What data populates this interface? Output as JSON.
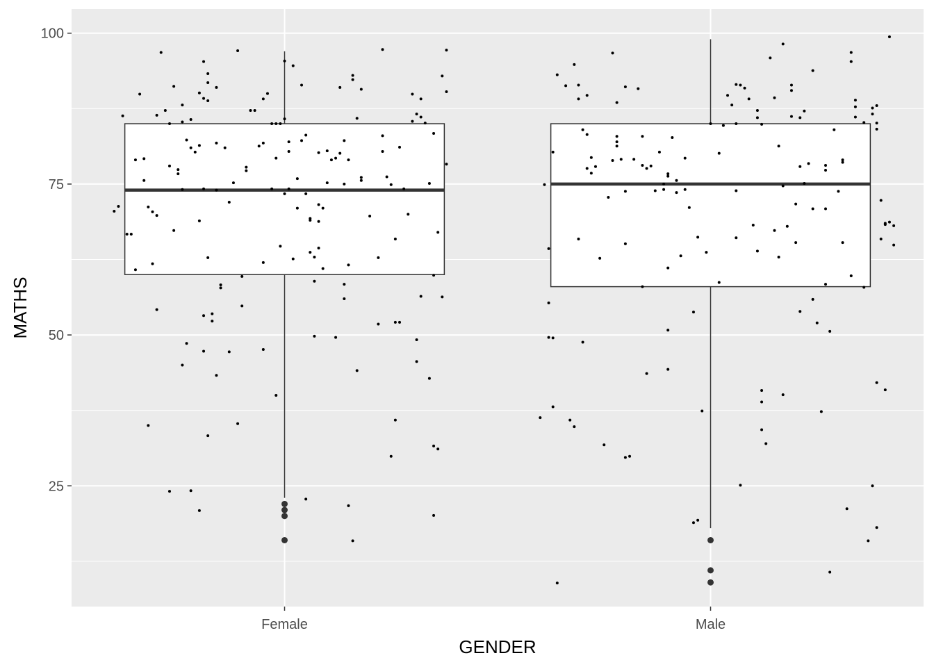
{
  "chart_data": {
    "type": "boxplot",
    "xlabel": "GENDER",
    "ylabel": "MATHS",
    "ylim": [
      5,
      104
    ],
    "yticks": [
      25,
      50,
      75,
      100
    ],
    "grid": true,
    "legend": "none",
    "categories": [
      "Female",
      "Male"
    ],
    "boxes": [
      {
        "category": "Female",
        "lower_whisker": 23,
        "q1": 60,
        "median": 74,
        "q3": 85,
        "upper_whisker": 97,
        "outliers": [
          22,
          21,
          20,
          16
        ]
      },
      {
        "category": "Male",
        "lower_whisker": 18,
        "q1": 58,
        "median": 75,
        "q3": 85,
        "upper_whisker": 99,
        "outliers": [
          16,
          11,
          9
        ]
      }
    ],
    "jitter_points": {
      "Female": [
        [
          -0.4,
          70.5
        ],
        [
          -0.39,
          71.3
        ],
        [
          -0.38,
          86.3
        ],
        [
          -0.37,
          66.7
        ],
        [
          -0.36,
          66.7
        ],
        [
          -0.35,
          60.8
        ],
        [
          -0.35,
          79.0
        ],
        [
          -0.34,
          89.9
        ],
        [
          -0.33,
          79.2
        ],
        [
          -0.33,
          75.6
        ],
        [
          -0.32,
          71.2
        ],
        [
          -0.32,
          35.0
        ],
        [
          -0.31,
          70.4
        ],
        [
          -0.31,
          61.8
        ],
        [
          -0.3,
          54.2
        ],
        [
          -0.3,
          86.4
        ],
        [
          -0.3,
          69.8
        ],
        [
          -0.29,
          96.8
        ],
        [
          -0.28,
          87.2
        ],
        [
          -0.27,
          78.0
        ],
        [
          -0.27,
          85.0
        ],
        [
          -0.27,
          24.1
        ],
        [
          -0.26,
          91.2
        ],
        [
          -0.26,
          67.3
        ],
        [
          -0.25,
          77.4
        ],
        [
          -0.25,
          76.7
        ],
        [
          -0.24,
          74.1
        ],
        [
          -0.24,
          45.0
        ],
        [
          -0.24,
          88.1
        ],
        [
          -0.24,
          85.3
        ],
        [
          -0.23,
          82.3
        ],
        [
          -0.23,
          48.6
        ],
        [
          -0.22,
          81.0
        ],
        [
          -0.22,
          85.7
        ],
        [
          -0.22,
          24.2
        ],
        [
          -0.21,
          80.3
        ],
        [
          -0.2,
          90.1
        ],
        [
          -0.2,
          68.9
        ],
        [
          -0.2,
          81.4
        ],
        [
          -0.2,
          20.9
        ],
        [
          -0.19,
          89.2
        ],
        [
          -0.19,
          74.2
        ],
        [
          -0.19,
          47.3
        ],
        [
          -0.19,
          53.2
        ],
        [
          -0.19,
          95.3
        ],
        [
          -0.18,
          88.8
        ],
        [
          -0.18,
          91.8
        ],
        [
          -0.18,
          93.3
        ],
        [
          -0.18,
          33.3
        ],
        [
          -0.18,
          62.8
        ],
        [
          -0.17,
          53.5
        ],
        [
          -0.17,
          52.3
        ],
        [
          -0.16,
          81.8
        ],
        [
          -0.16,
          91.0
        ],
        [
          -0.16,
          43.3
        ],
        [
          -0.16,
          74.0
        ],
        [
          -0.16,
          74.0
        ],
        [
          -0.15,
          57.8
        ],
        [
          -0.15,
          58.3
        ],
        [
          -0.14,
          81.0
        ],
        [
          -0.13,
          72.0
        ],
        [
          -0.13,
          47.2
        ],
        [
          -0.12,
          75.2
        ],
        [
          -0.11,
          97.1
        ],
        [
          -0.11,
          35.3
        ],
        [
          -0.1,
          59.7
        ],
        [
          -0.1,
          54.8
        ],
        [
          -0.09,
          77.2
        ],
        [
          -0.09,
          77.8
        ],
        [
          -0.08,
          87.2
        ],
        [
          -0.07,
          87.2
        ],
        [
          -0.06,
          81.3
        ],
        [
          -0.05,
          47.6
        ],
        [
          -0.05,
          89.1
        ],
        [
          -0.05,
          81.8
        ],
        [
          -0.05,
          62.0
        ],
        [
          -0.04,
          90.0
        ],
        [
          -0.03,
          85.0
        ],
        [
          -0.03,
          74.2
        ],
        [
          -0.02,
          85.0
        ],
        [
          -0.02,
          79.3
        ],
        [
          -0.02,
          40.0
        ],
        [
          -0.01,
          64.7
        ],
        [
          -0.01,
          85.0
        ],
        [
          0.0,
          85.8
        ],
        [
          0.0,
          73.4
        ],
        [
          0.0,
          95.4
        ],
        [
          0.01,
          82.0
        ],
        [
          0.01,
          80.4
        ],
        [
          0.01,
          74.2
        ],
        [
          0.02,
          62.6
        ],
        [
          0.02,
          94.6
        ],
        [
          0.03,
          71.0
        ],
        [
          0.03,
          75.9
        ],
        [
          0.04,
          91.4
        ],
        [
          0.04,
          82.2
        ],
        [
          0.05,
          73.4
        ],
        [
          0.05,
          83.1
        ],
        [
          0.05,
          22.8
        ],
        [
          0.06,
          63.7
        ],
        [
          0.06,
          69.0
        ],
        [
          0.06,
          69.3
        ],
        [
          0.07,
          49.8
        ],
        [
          0.07,
          62.9
        ],
        [
          0.07,
          58.9
        ],
        [
          0.08,
          64.4
        ],
        [
          0.08,
          71.6
        ],
        [
          0.08,
          80.2
        ],
        [
          0.08,
          68.8
        ],
        [
          0.09,
          61.0
        ],
        [
          0.09,
          71.0
        ],
        [
          0.1,
          80.5
        ],
        [
          0.1,
          75.2
        ],
        [
          0.11,
          79.0
        ],
        [
          0.12,
          49.6
        ],
        [
          0.12,
          79.3
        ],
        [
          0.13,
          91.0
        ],
        [
          0.13,
          80.1
        ],
        [
          0.14,
          82.2
        ],
        [
          0.14,
          75.0
        ],
        [
          0.14,
          58.4
        ],
        [
          0.15,
          61.6
        ],
        [
          0.14,
          56.0
        ],
        [
          0.15,
          21.7
        ],
        [
          0.15,
          79.0
        ],
        [
          0.16,
          93.0
        ],
        [
          0.16,
          92.3
        ],
        [
          0.16,
          15.9
        ],
        [
          0.17,
          44.1
        ],
        [
          0.17,
          85.9
        ],
        [
          0.18,
          90.7
        ],
        [
          0.18,
          75.6
        ],
        [
          0.18,
          76.1
        ],
        [
          0.2,
          69.7
        ],
        [
          0.22,
          51.8
        ],
        [
          0.22,
          62.8
        ],
        [
          0.23,
          80.4
        ],
        [
          0.23,
          83.0
        ],
        [
          0.23,
          97.3
        ],
        [
          0.24,
          76.2
        ],
        [
          0.25,
          74.9
        ],
        [
          0.25,
          29.9
        ],
        [
          0.26,
          52.1
        ],
        [
          0.26,
          65.9
        ],
        [
          0.26,
          35.9
        ],
        [
          0.27,
          81.1
        ],
        [
          0.27,
          52.1
        ],
        [
          0.28,
          74.2
        ],
        [
          0.29,
          70.0
        ],
        [
          0.3,
          85.4
        ],
        [
          0.3,
          89.9
        ],
        [
          0.31,
          86.6
        ],
        [
          0.31,
          49.2
        ],
        [
          0.31,
          45.6
        ],
        [
          0.32,
          56.4
        ],
        [
          0.32,
          89.1
        ],
        [
          0.32,
          86.1
        ],
        [
          0.33,
          85.1
        ],
        [
          0.34,
          42.8
        ],
        [
          0.34,
          75.1
        ],
        [
          0.35,
          31.6
        ],
        [
          0.35,
          59.9
        ],
        [
          0.35,
          83.4
        ],
        [
          0.35,
          20.1
        ],
        [
          0.36,
          67.0
        ],
        [
          0.36,
          31.1
        ],
        [
          0.37,
          56.3
        ],
        [
          0.37,
          92.9
        ],
        [
          0.38,
          90.3
        ],
        [
          0.38,
          78.3
        ],
        [
          0.38,
          97.2
        ]
      ],
      "Male": [
        [
          -0.4,
          36.3
        ],
        [
          -0.39,
          74.9
        ],
        [
          -0.38,
          55.3
        ],
        [
          -0.38,
          49.6
        ],
        [
          -0.38,
          64.3
        ],
        [
          -0.37,
          49.5
        ],
        [
          -0.37,
          38.1
        ],
        [
          -0.37,
          80.3
        ],
        [
          -0.36,
          93.1
        ],
        [
          -0.36,
          8.9
        ],
        [
          -0.34,
          91.3
        ],
        [
          -0.33,
          35.9
        ],
        [
          -0.32,
          94.8
        ],
        [
          -0.32,
          34.8
        ],
        [
          -0.31,
          89.1
        ],
        [
          -0.31,
          91.4
        ],
        [
          -0.31,
          65.9
        ],
        [
          -0.3,
          84.0
        ],
        [
          -0.3,
          48.8
        ],
        [
          -0.29,
          89.7
        ],
        [
          -0.29,
          77.6
        ],
        [
          -0.29,
          83.2
        ],
        [
          -0.28,
          79.4
        ],
        [
          -0.28,
          76.8
        ],
        [
          -0.27,
          77.9
        ],
        [
          -0.26,
          62.7
        ],
        [
          -0.25,
          31.8
        ],
        [
          -0.24,
          72.8
        ],
        [
          -0.23,
          78.9
        ],
        [
          -0.23,
          96.7
        ],
        [
          -0.22,
          82.9
        ],
        [
          -0.22,
          82.0
        ],
        [
          -0.22,
          81.3
        ],
        [
          -0.22,
          88.5
        ],
        [
          -0.21,
          79.1
        ],
        [
          -0.2,
          91.1
        ],
        [
          -0.2,
          65.1
        ],
        [
          -0.2,
          29.7
        ],
        [
          -0.2,
          73.8
        ],
        [
          -0.19,
          29.9
        ],
        [
          -0.18,
          79.1
        ],
        [
          -0.17,
          90.8
        ],
        [
          -0.16,
          78.1
        ],
        [
          -0.16,
          58.0
        ],
        [
          -0.16,
          82.9
        ],
        [
          -0.15,
          77.6
        ],
        [
          -0.15,
          43.6
        ],
        [
          -0.14,
          78.0
        ],
        [
          -0.13,
          73.9
        ],
        [
          -0.12,
          80.3
        ],
        [
          -0.11,
          75.0
        ],
        [
          -0.11,
          74.1
        ],
        [
          -0.1,
          50.8
        ],
        [
          -0.1,
          61.1
        ],
        [
          -0.1,
          44.3
        ],
        [
          -0.1,
          76.3
        ],
        [
          -0.1,
          76.7
        ],
        [
          -0.09,
          82.7
        ],
        [
          -0.08,
          75.6
        ],
        [
          -0.08,
          73.6
        ],
        [
          -0.07,
          63.1
        ],
        [
          -0.06,
          74.1
        ],
        [
          -0.06,
          79.3
        ],
        [
          -0.05,
          71.1
        ],
        [
          -0.04,
          53.8
        ],
        [
          -0.04,
          18.9
        ],
        [
          -0.03,
          66.2
        ],
        [
          -0.03,
          19.3
        ],
        [
          -0.02,
          37.4
        ],
        [
          -0.01,
          63.7
        ],
        [
          0.0,
          85.0
        ],
        [
          0.02,
          80.1
        ],
        [
          0.02,
          58.7
        ],
        [
          0.03,
          84.7
        ],
        [
          0.04,
          89.7
        ],
        [
          0.05,
          88.1
        ],
        [
          0.06,
          85.0
        ],
        [
          0.06,
          66.1
        ],
        [
          0.06,
          91.5
        ],
        [
          0.06,
          73.9
        ],
        [
          0.07,
          91.4
        ],
        [
          0.07,
          25.1
        ],
        [
          0.08,
          90.9
        ],
        [
          0.09,
          89.1
        ],
        [
          0.1,
          68.2
        ],
        [
          0.11,
          87.2
        ],
        [
          0.11,
          86.0
        ],
        [
          0.11,
          63.9
        ],
        [
          0.12,
          84.9
        ],
        [
          0.12,
          40.8
        ],
        [
          0.12,
          34.3
        ],
        [
          0.12,
          38.9
        ],
        [
          0.13,
          32.0
        ],
        [
          0.14,
          95.9
        ],
        [
          0.15,
          89.3
        ],
        [
          0.15,
          67.3
        ],
        [
          0.16,
          62.9
        ],
        [
          0.16,
          81.3
        ],
        [
          0.17,
          40.1
        ],
        [
          0.17,
          98.2
        ],
        [
          0.17,
          74.7
        ],
        [
          0.18,
          68.0
        ],
        [
          0.19,
          90.5
        ],
        [
          0.19,
          91.4
        ],
        [
          0.19,
          86.2
        ],
        [
          0.2,
          71.7
        ],
        [
          0.2,
          65.3
        ],
        [
          0.21,
          86.0
        ],
        [
          0.21,
          77.9
        ],
        [
          0.21,
          53.9
        ],
        [
          0.22,
          75.1
        ],
        [
          0.22,
          87.1
        ],
        [
          0.23,
          78.4
        ],
        [
          0.24,
          70.9
        ],
        [
          0.24,
          93.8
        ],
        [
          0.24,
          55.9
        ],
        [
          0.25,
          52.0
        ],
        [
          0.26,
          37.3
        ],
        [
          0.27,
          77.3
        ],
        [
          0.27,
          78.1
        ],
        [
          0.27,
          58.4
        ],
        [
          0.27,
          70.9
        ],
        [
          0.28,
          50.6
        ],
        [
          0.28,
          10.7
        ],
        [
          0.29,
          84.0
        ],
        [
          0.3,
          73.8
        ],
        [
          0.31,
          65.3
        ],
        [
          0.31,
          79.0
        ],
        [
          0.31,
          78.6
        ],
        [
          0.32,
          21.2
        ],
        [
          0.33,
          96.8
        ],
        [
          0.33,
          95.3
        ],
        [
          0.33,
          59.8
        ],
        [
          0.34,
          88.9
        ],
        [
          0.34,
          87.8
        ],
        [
          0.34,
          86.1
        ],
        [
          0.36,
          57.9
        ],
        [
          0.36,
          85.2
        ],
        [
          0.37,
          15.9
        ],
        [
          0.38,
          25.0
        ],
        [
          0.38,
          87.6
        ],
        [
          0.38,
          86.6
        ],
        [
          0.39,
          88.0
        ],
        [
          0.39,
          18.1
        ],
        [
          0.39,
          42.1
        ],
        [
          0.39,
          85.1
        ],
        [
          0.39,
          84.1
        ],
        [
          0.4,
          72.3
        ],
        [
          0.4,
          65.9
        ],
        [
          0.41,
          40.9
        ],
        [
          0.41,
          68.5
        ],
        [
          0.41,
          68.3
        ],
        [
          0.42,
          68.7
        ],
        [
          0.42,
          99.4
        ],
        [
          0.43,
          64.9
        ],
        [
          0.43,
          68.1
        ]
      ]
    }
  }
}
